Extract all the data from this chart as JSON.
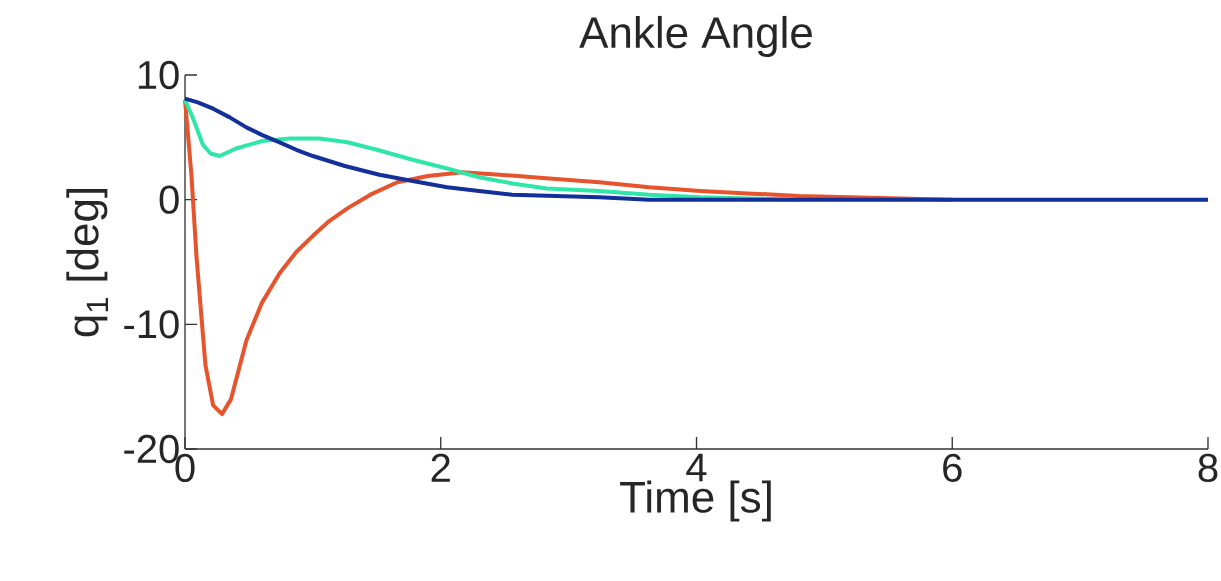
{
  "chart_data": {
    "type": "line",
    "title": "Ankle Angle",
    "xlabel": "Time [s]",
    "ylabel": "q$_{1}$ [deg]",
    "xlim": [
      0,
      8
    ],
    "ylim": [
      -20,
      10
    ],
    "xticks": [
      0,
      2,
      4,
      6,
      8
    ],
    "yticks": [
      -20,
      -10,
      0,
      10
    ],
    "marker": "none",
    "line_style": "solid",
    "series": [
      {
        "color": "#e6532c",
        "x": [
          0,
          0.05,
          0.09,
          0.16,
          0.22,
          0.29,
          0.36,
          0.48,
          0.6,
          0.74,
          0.87,
          1.0,
          1.13,
          1.27,
          1.45,
          1.66,
          1.9,
          2.17,
          2.46,
          2.85,
          3.24,
          3.63,
          4.03,
          4.4,
          4.8,
          5.2,
          5.6,
          6
        ],
        "values": [
          8,
          2,
          -4.6,
          -13.3,
          -16.5,
          -17.2,
          -16,
          -11.3,
          -8.3,
          -5.9,
          -4.2,
          -2.9,
          -1.7,
          -0.7,
          0.4,
          1.4,
          1.9,
          2.2,
          2,
          1.7,
          1.4,
          1,
          0.7,
          0.5,
          0.3,
          0.2,
          0.1,
          0
        ]
      },
      {
        "color": "#2ee6a8",
        "x": [
          0,
          0.06,
          0.14,
          0.2,
          0.27,
          0.4,
          0.6,
          0.82,
          1.05,
          1.27,
          1.5,
          1.78,
          2.05,
          2.3,
          2.56,
          2.83,
          3.24,
          3.63,
          4.03,
          4.4,
          4.8
        ],
        "values": [
          8,
          6.6,
          4.4,
          3.7,
          3.5,
          4.1,
          4.7,
          4.9,
          4.9,
          4.6,
          4,
          3.2,
          2.5,
          1.8,
          1.3,
          0.9,
          0.7,
          0.4,
          0.2,
          0.1,
          0
        ]
      },
      {
        "color": "#122f9a",
        "x": [
          0,
          0.1,
          0.22,
          0.35,
          0.48,
          0.6,
          0.74,
          0.87,
          1.0,
          1.25,
          1.52,
          1.78,
          2.05,
          2.3,
          2.56,
          2.9,
          3.24,
          3.63,
          4,
          5,
          6,
          7,
          8
        ],
        "values": [
          8.1,
          7.8,
          7.3,
          6.6,
          5.8,
          5.2,
          4.6,
          4,
          3.5,
          2.7,
          2,
          1.5,
          1,
          0.7,
          0.4,
          0.3,
          0.2,
          0,
          0,
          0,
          0,
          0,
          0
        ]
      }
    ]
  }
}
